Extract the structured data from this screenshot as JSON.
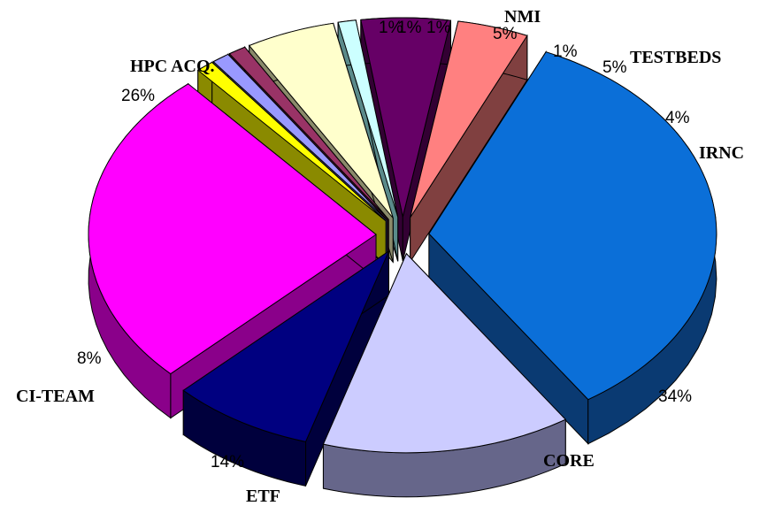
{
  "chart_data": {
    "type": "pie",
    "title": "",
    "style": "3d-exploded",
    "legend": "none",
    "slices": [
      {
        "category": "CORE",
        "label": "34%",
        "value": 34,
        "color": "#0b6fd8",
        "side_color": "#0a3a72"
      },
      {
        "category": "ETF",
        "label": "14%",
        "value": 14,
        "color": "#ccccff",
        "side_color": "#66668a"
      },
      {
        "category": "CI-TEAM",
        "label": "8%",
        "value": 8,
        "color": "#000080",
        "side_color": "#00003d"
      },
      {
        "category": "HPC ACQ.",
        "label": "26%",
        "value": 26,
        "color": "#ff00ff",
        "side_color": "#8a008a"
      },
      {
        "category": "",
        "label": "1%",
        "value": 1,
        "color": "#ffff00",
        "side_color": "#8a8a00"
      },
      {
        "category": "",
        "label": "1%",
        "value": 1,
        "color": "#9999ff",
        "side_color": "#4d4d88"
      },
      {
        "category": "",
        "label": "1%",
        "value": 1,
        "color": "#993366",
        "side_color": "#4d1a33"
      },
      {
        "category": "NMI",
        "label": "5%",
        "value": 5,
        "color": "#ffffcc",
        "side_color": "#8a8a6a"
      },
      {
        "category": "",
        "label": "1%",
        "value": 1,
        "color": "#ccffff",
        "side_color": "#5a8a8a"
      },
      {
        "category": "TESTBEDS",
        "label": "5%",
        "value": 5,
        "color": "#660066",
        "side_color": "#330033"
      },
      {
        "category": "IRNC",
        "label": "4%",
        "value": 4,
        "color": "#ff8080",
        "side_color": "#804040"
      }
    ]
  }
}
